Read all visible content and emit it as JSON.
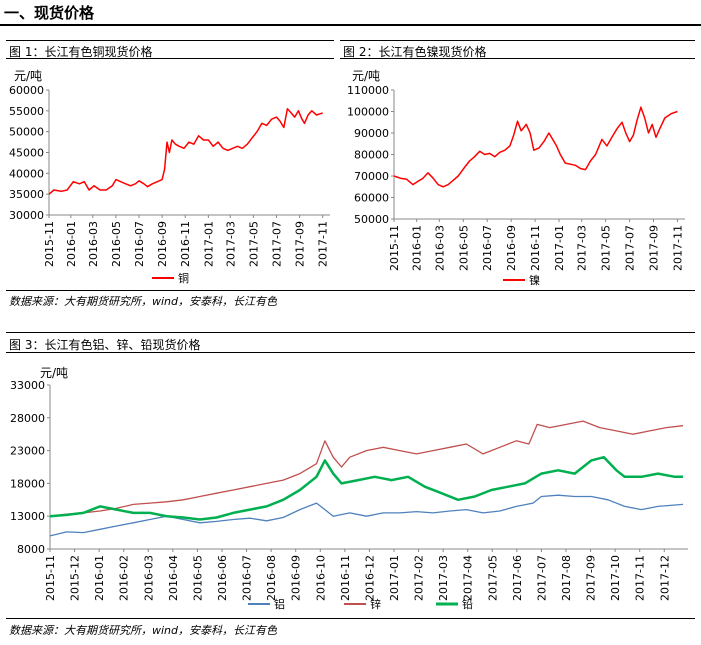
{
  "section_title": "一、现货价格",
  "figures": [
    {
      "title": "图 1：长江有色铜现货价格",
      "source": "数据来源：大有期货研究所，wind，安泰科，长江有色"
    },
    {
      "title": "图 2：长江有色镍现货价格"
    },
    {
      "title": "图 3：长江有色铝、锌、铅现货价格",
      "source": "数据来源：大有期货研究所，wind，安泰科，长江有色"
    }
  ],
  "chart_data": [
    {
      "type": "line",
      "title": "图 1：长江有色铜现货价格",
      "unit": "元/吨",
      "ylim": [
        30000,
        60000
      ],
      "yticks": [
        30000,
        35000,
        40000,
        45000,
        50000,
        55000,
        60000
      ],
      "xlabels": [
        "2015-11",
        "2016-01",
        "2016-03",
        "2016-05",
        "2016-07",
        "2016-09",
        "2016-11",
        "2017-01",
        "2017-03",
        "2017-05",
        "2017-07",
        "2017-09",
        "2017-11"
      ],
      "series": [
        {
          "name": "铜",
          "color": "#ff0000",
          "x": [
            0,
            1,
            2,
            3,
            4,
            5,
            6,
            7,
            8,
            9,
            10,
            11,
            12,
            13,
            14,
            15,
            16,
            17,
            18,
            19,
            20,
            21,
            22,
            23,
            24,
            25,
            26,
            27,
            28,
            29,
            30,
            31,
            32,
            33,
            34,
            35,
            36,
            37,
            38,
            39,
            40,
            41,
            42,
            43,
            44,
            45,
            46,
            47,
            48,
            49,
            50,
            51,
            52,
            53,
            54,
            55,
            56,
            57,
            58,
            59,
            60,
            61,
            62,
            63,
            64,
            65,
            66,
            67,
            68,
            69,
            70,
            71,
            72,
            73,
            74,
            75,
            76,
            77,
            78,
            79,
            80,
            81,
            82,
            83,
            84,
            85,
            86,
            87,
            88,
            89,
            90,
            91,
            92,
            93,
            94,
            95,
            96,
            97,
            98,
            99,
            100,
            101,
            102,
            103,
            104,
            105,
            106,
            107,
            108,
            109,
            110,
            111,
            112,
            113,
            114,
            115,
            116,
            117,
            118,
            119,
            120,
            121,
            122,
            123,
            124,
            125,
            126,
            127,
            128,
            129,
            130,
            131,
            132,
            133,
            134,
            135,
            136,
            137,
            138,
            139,
            140,
            141,
            142,
            143,
            144,
            145,
            146,
            147,
            148,
            149,
            150,
            151,
            152,
            153,
            154,
            155,
            156,
            157,
            158,
            159,
            160,
            161,
            162,
            163,
            164,
            165,
            166,
            167,
            168,
            169,
            170,
            171,
            172,
            173,
            174,
            175,
            176,
            177,
            178,
            179,
            180,
            181,
            182,
            183,
            184,
            185,
            186,
            187,
            188,
            189,
            190,
            191,
            192,
            193,
            194,
            195,
            196,
            197,
            198,
            199,
            200,
            201,
            202,
            203,
            204,
            205,
            206,
            207,
            208,
            209,
            210,
            211,
            212,
            213,
            214,
            215,
            216,
            217,
            218,
            219,
            220,
            221,
            222,
            223,
            224,
            225,
            226,
            227,
            228,
            229,
            230,
            231,
            232,
            233,
            234,
            235,
            236,
            237,
            238,
            239,
            240,
            241,
            242,
            243,
            244,
            245,
            246,
            247,
            248,
            249,
            250,
            251,
            252,
            253,
            254,
            255,
            256,
            257,
            258,
            259,
            260,
            261,
            262,
            263,
            264,
            265,
            266,
            267,
            268,
            269,
            270,
            271,
            272,
            273,
            274,
            275,
            276,
            277,
            278,
            279,
            280,
            281,
            282,
            283,
            284,
            285,
            286,
            287,
            288,
            289,
            290,
            291,
            292,
            293,
            294,
            295,
            296,
            297,
            298,
            299,
            300,
            301,
            302,
            303,
            304,
            305,
            306,
            307,
            308,
            309,
            310,
            311,
            312,
            313,
            314,
            315,
            316,
            317,
            318,
            319,
            320,
            321,
            322,
            323,
            324,
            325,
            326,
            327,
            328,
            329,
            330,
            331,
            332,
            333,
            334,
            335,
            336,
            337,
            338,
            339,
            340,
            341,
            342,
            343,
            344,
            345,
            346,
            347,
            348,
            349,
            350,
            351,
            352,
            353,
            354,
            355,
            356,
            357,
            358,
            359,
            360,
            361,
            362,
            363,
            364,
            365,
            366,
            367,
            368,
            369,
            370,
            371,
            372,
            373,
            374,
            375,
            376,
            377,
            378,
            379,
            380,
            381,
            382,
            383,
            384,
            385,
            386,
            387,
            388,
            389,
            390,
            391,
            392,
            393,
            394,
            395,
            396,
            397,
            398,
            399,
            400,
            401,
            402,
            403,
            404,
            405,
            406,
            407,
            408,
            409,
            410,
            411,
            412,
            413,
            414,
            415,
            416,
            417,
            418,
            419,
            420,
            421,
            422,
            423,
            424,
            425,
            426,
            427,
            428,
            429,
            430,
            431,
            432,
            433,
            434,
            435,
            436,
            437,
            438,
            439,
            440,
            441,
            442,
            443,
            444,
            445,
            446,
            447,
            448,
            449,
            450,
            451,
            452,
            453,
            454,
            455,
            456,
            457,
            458,
            459,
            460,
            461,
            462,
            463,
            464,
            465,
            466,
            467,
            468,
            469,
            470,
            471,
            472,
            473,
            474,
            475,
            476,
            477,
            478,
            479,
            480,
            481,
            482,
            483,
            484,
            485,
            486,
            487,
            488,
            489,
            490,
            491,
            492,
            493,
            494,
            495,
            496,
            497,
            498,
            499,
            500,
            501,
            502,
            503,
            504,
            505,
            506,
            507,
            508,
            509,
            510,
            511,
            512,
            513,
            514,
            515,
            516,
            517,
            518,
            519,
            520,
            521,
            522,
            523,
            524,
            525,
            526,
            527,
            528,
            529,
            530,
            531,
            532,
            533,
            534,
            535,
            536,
            537,
            538,
            539,
            540,
            541,
            542,
            543,
            544,
            545,
            546,
            547,
            548,
            549,
            550,
            551,
            552,
            553,
            554,
            555,
            556,
            557,
            558,
            559,
            560,
            561,
            562,
            563,
            564,
            565,
            566,
            567,
            568,
            569,
            570,
            571,
            572,
            573,
            574,
            575,
            576,
            577,
            578,
            579,
            580,
            581,
            582,
            583,
            584,
            585,
            586,
            587,
            588,
            589,
            590,
            591,
            592,
            593,
            594,
            595,
            596,
            597,
            598,
            599,
            600,
            601,
            602,
            603,
            604,
            605,
            606,
            607,
            608,
            609,
            610,
            611,
            612,
            613,
            614,
            615,
            616,
            617,
            618,
            619,
            620,
            621,
            622,
            623,
            624,
            625,
            626,
            627,
            628,
            629,
            630,
            631,
            632,
            633,
            634,
            635,
            636,
            637,
            638,
            639,
            640,
            641,
            642,
            643,
            644,
            645,
            646,
            647,
            648,
            649,
            650,
            651,
            652,
            653,
            654,
            655,
            656,
            657,
            658,
            659,
            660,
            661,
            662,
            663,
            664,
            665,
            666,
            667,
            668,
            669,
            670,
            671,
            672,
            673,
            674,
            675,
            676,
            677,
            678,
            679,
            680,
            681,
            682,
            683,
            684,
            685,
            686,
            687,
            688,
            689,
            690,
            691,
            692,
            693,
            694,
            695,
            696,
            697,
            698,
            699,
            700,
            701,
            702,
            703,
            704,
            705,
            706,
            707,
            708,
            709,
            710,
            711,
            712,
            713,
            714,
            715,
            716,
            717,
            718,
            719,
            720,
            721,
            722,
            723,
            724,
            725,
            726,
            727,
            728,
            729,
            730,
            731,
            732,
            733,
            734,
            735,
            736,
            737,
            738,
            739,
            740,
            741,
            742,
            743,
            744,
            745,
            746,
            747,
            748,
            749,
            750,
            751,
            752,
            753,
            754,
            755,
            756,
            757,
            758,
            759,
            760,
            761,
            762,
            763,
            764,
            765,
            766,
            767,
            768,
            769,
            770,
            771,
            772,
            773,
            774,
            775,
            776,
            777,
            778,
            779,
            780
          ],
          "xkeys": [
            [
              0,
              "2015-11"
            ],
            [
              36,
              "2016-01"
            ],
            [
              72,
              "2016-03"
            ],
            [
              110,
              "2016-05"
            ],
            [
              148,
              "2016-07"
            ],
            [
              186,
              "2016-09"
            ],
            [
              224,
              "2016-11"
            ],
            [
              262,
              "2017-01"
            ],
            [
              298,
              "2017-03"
            ],
            [
              336,
              "2017-05"
            ],
            [
              374,
              "2017-07"
            ],
            [
              412,
              "2017-09"
            ],
            [
              450,
              "2017-11"
            ]
          ]
        }
      ]
    }
  ]
}
